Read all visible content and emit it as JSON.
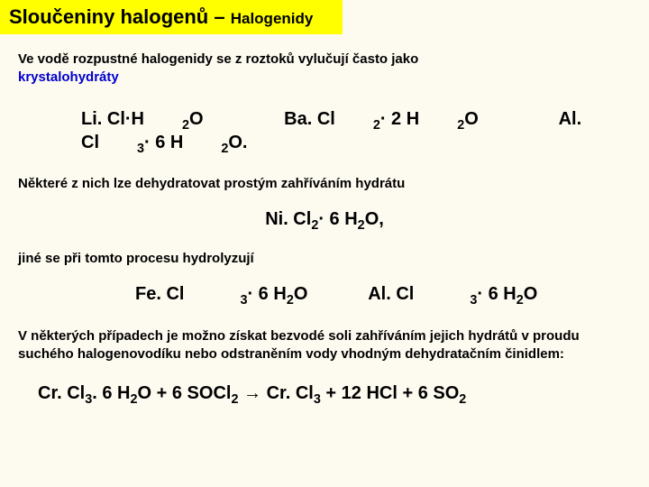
{
  "title": {
    "main": "Sloučeniny halogenů – ",
    "sub": "Halogenidy"
  },
  "para1_a": "Ve vodě rozpustné halogenidy se z roztoků vylučují často jako ",
  "para1_b": "krystalohydráty",
  "formulas1": {
    "a": "Li. Cl·H",
    "a_sub": "2",
    "a_end": "O",
    "b": "Ba. Cl",
    "b_sub1": "2",
    "b_mid": "· 2 H",
    "b_sub2": "2",
    "b_end": "O",
    "c": "Al. Cl",
    "c_sub1": "3",
    "c_mid": "· 6 H",
    "c_sub2": "2",
    "c_end": "O."
  },
  "para2": "Některé z nich lze dehydratovat prostým zahříváním hydrátu",
  "formula_center": {
    "a": "Ni. Cl",
    "sub1": "2",
    "mid": "· 6 H",
    "sub2": "2",
    "end": "O,"
  },
  "para3": "jiné se při tomto procesu hydrolyzují",
  "formulas2": {
    "a": "Fe. Cl",
    "a_sub1": "3",
    "a_mid": "· 6 H",
    "a_sub2": "2",
    "a_end": "O",
    "b": "Al. Cl",
    "b_sub1": "3",
    "b_mid": "· 6 H",
    "b_sub2": "2",
    "b_end": "O"
  },
  "para4": "V některých případech je možno získat bezvodé soli zahříváním jejich hydrátů v proudu suchého halogenovodíku nebo odstraněním vody vhodným dehydratačním činidlem:",
  "equation": {
    "p1": "Cr. Cl",
    "s1": "3",
    "p2": ". 6 H",
    "s2": "2",
    "p3": "O  +  6 SOCl",
    "s3": "2",
    "p4": "  →  Cr. Cl",
    "s4": "3",
    "p5": "  +  12 HCl  +  6 SO",
    "s5": "2"
  }
}
